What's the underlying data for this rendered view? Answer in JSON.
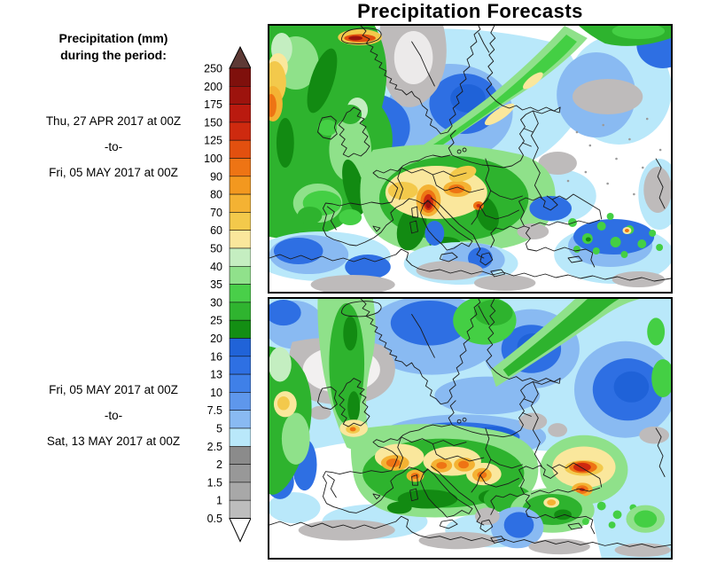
{
  "title": "Precipitation Forecasts",
  "sidebar": {
    "heading_line1": "Precipitation (mm)",
    "heading_line2": "during the period:",
    "period1": {
      "from": "Thu, 27 APR 2017 at 00Z",
      "separator": "-to-",
      "to": "Fri, 05 MAY 2017 at 00Z"
    },
    "period2": {
      "from": "Fri, 05 MAY 2017 at 00Z",
      "separator": "-to-",
      "to": "Sat, 13 MAY 2017 at 00Z"
    }
  },
  "colorbar": {
    "unit": "mm",
    "boundaries": [
      "250",
      "200",
      "175",
      "150",
      "125",
      "100",
      "90",
      "80",
      "70",
      "60",
      "50",
      "40",
      "35",
      "30",
      "25",
      "20",
      "16",
      "13",
      "10",
      "7.5",
      "5",
      "2.5",
      "2",
      "1.5",
      "1",
      "0.5"
    ],
    "colors": [
      "#7F100C",
      "#9D130D",
      "#BA1A0F",
      "#CE2A0F",
      "#E2500F",
      "#EE7414",
      "#F3981F",
      "#F4B233",
      "#F3C94B",
      "#FAE79C",
      "#C5EEC1",
      "#90E18B",
      "#49CF49",
      "#2FB42F",
      "#138E13",
      "#2063D8",
      "#2E70E3",
      "#3F80E8",
      "#5E97EC",
      "#89BAF2",
      "#B9E8FA",
      "#8B8B8B",
      "#989898",
      "#A8A8A8",
      "#BDBDBD"
    ],
    "overflow_color": "#5E3A36",
    "underflow_color": "#FFFFFF"
  }
}
